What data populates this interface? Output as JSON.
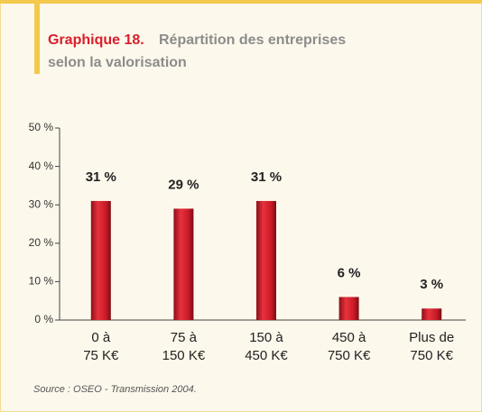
{
  "chart_data": {
    "type": "bar",
    "title_label": "Graphique 18.",
    "title": "Répartition des entreprises selon la valorisation",
    "categories": [
      "0 à\n75 K€",
      "75 à\n150 K€",
      "150 à\n450 K€",
      "450 à\n750 K€",
      "Plus de\n750 K€"
    ],
    "values": [
      31,
      29,
      31,
      6,
      3
    ],
    "value_labels": [
      "31 %",
      "29 %",
      "31 %",
      "6 %",
      "3 %"
    ],
    "color": "#d81e2c",
    "ylim": [
      0,
      50
    ],
    "yticks": [
      {
        "value": 0,
        "label": "0 %"
      },
      {
        "value": 10,
        "label": "10 %"
      },
      {
        "value": 20,
        "label": "20 %"
      },
      {
        "value": 30,
        "label": "30 %"
      },
      {
        "value": 40,
        "label": "40 %"
      },
      {
        "value": 50,
        "label": "50 %"
      }
    ],
    "source": "Source : OSEO - Transmission 2004."
  }
}
